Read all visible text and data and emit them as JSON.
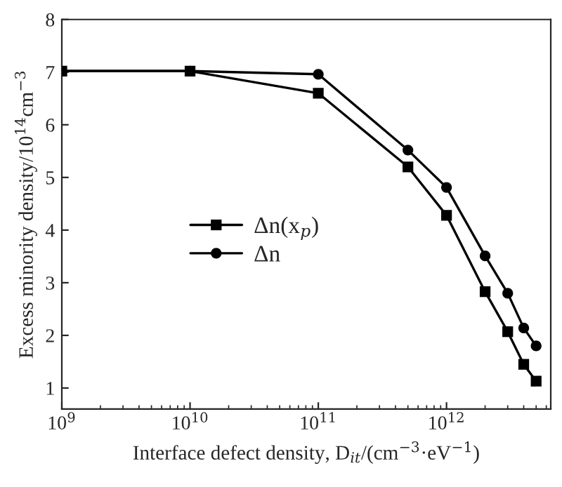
{
  "chart_data": {
    "type": "line",
    "xlabel": "Interface defect density, D$_{it}$/(cm$^{−3}$·eV$^{−1}$)",
    "ylabel": "Excess minority density/10$^{14}$cm$^{−3}$",
    "log": "x",
    "xlim": [
      1000000000.0,
      6500000000000.0
    ],
    "ylim": [
      0.6,
      8
    ],
    "xticks": [
      {
        "value": 1000000000.0,
        "label": "10$^{9}$"
      },
      {
        "value": 10000000000.0,
        "label": "10$^{10}$"
      },
      {
        "value": 100000000000.0,
        "label": "10$^{11}$"
      },
      {
        "value": 1000000000000.0,
        "label": "10$^{12}$"
      }
    ],
    "yticks": [
      1,
      2,
      3,
      4,
      5,
      6,
      7,
      8
    ],
    "grid": false,
    "legend": "center left",
    "series": [
      {
        "name": "Δn",
        "color": "#000000",
        "marker": "circle",
        "x": [
          1000000000.0,
          10000000000.0,
          100000000000.0,
          500000000000.0,
          1000000000000.0,
          2000000000000.0,
          3000000000000.0,
          4000000000000.0,
          5000000000000.0
        ],
        "values": [
          7.02,
          7.02,
          6.96,
          5.52,
          4.81,
          3.51,
          2.8,
          2.14,
          1.8
        ]
      },
      {
        "name": "Δn(x$_{p}$)",
        "color": "#000000",
        "marker": "square",
        "x": [
          1000000000.0,
          10000000000.0,
          100000000000.0,
          500000000000.0,
          1000000000000.0,
          2000000000000.0,
          3000000000000.0,
          4000000000000.0,
          5000000000000.0
        ],
        "values": [
          7.02,
          7.02,
          6.6,
          5.2,
          4.28,
          2.83,
          2.07,
          1.45,
          1.13
        ]
      }
    ]
  }
}
